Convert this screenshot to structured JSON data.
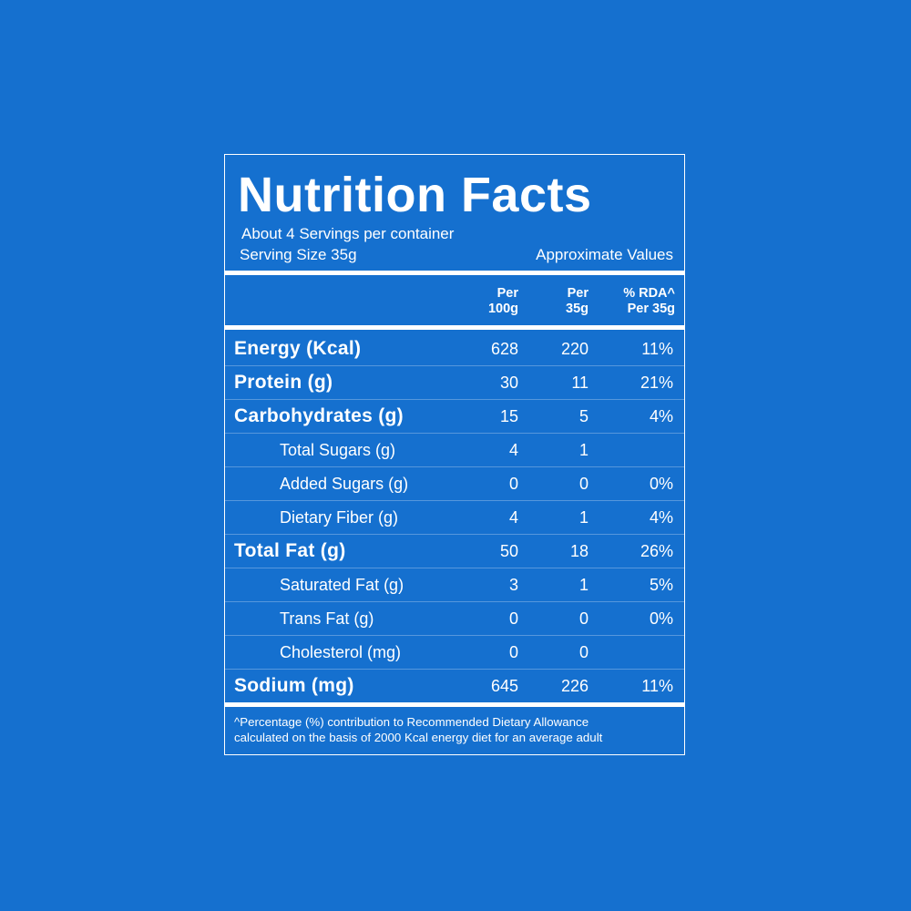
{
  "colors": {
    "background": "#1570cf",
    "text": "#ffffff"
  },
  "label": {
    "title": "Nutrition Facts",
    "servings_per_container": "About 4 Servings per container",
    "serving_size": "Serving Size 35g",
    "approximate": "Approximate Values",
    "columns": [
      {
        "line1": "Per",
        "line2": "100g"
      },
      {
        "line1": "Per",
        "line2": "35g"
      },
      {
        "line1": "% RDA^",
        "line2": "Per 35g"
      }
    ],
    "rows": [
      {
        "name": "Energy (Kcal)",
        "level": "main",
        "per100": "628",
        "per35": "220",
        "rda": "11%"
      },
      {
        "name": "Protein (g)",
        "level": "main",
        "per100": "30",
        "per35": "11",
        "rda": "21%"
      },
      {
        "name": "Carbohydrates (g)",
        "level": "main",
        "per100": "15",
        "per35": "5",
        "rda": "4%"
      },
      {
        "name": "Total Sugars (g)",
        "level": "sub",
        "per100": "4",
        "per35": "1",
        "rda": ""
      },
      {
        "name": "Added Sugars (g)",
        "level": "sub",
        "per100": "0",
        "per35": "0",
        "rda": "0%"
      },
      {
        "name": "Dietary Fiber (g)",
        "level": "sub",
        "per100": "4",
        "per35": "1",
        "rda": "4%"
      },
      {
        "name": "Total Fat (g)",
        "level": "main",
        "per100": "50",
        "per35": "18",
        "rda": "26%"
      },
      {
        "name": "Saturated Fat (g)",
        "level": "sub",
        "per100": "3",
        "per35": "1",
        "rda": "5%"
      },
      {
        "name": "Trans Fat (g)",
        "level": "sub",
        "per100": "0",
        "per35": "0",
        "rda": "0%"
      },
      {
        "name": "Cholesterol (mg)",
        "level": "sub",
        "per100": "0",
        "per35": "0",
        "rda": ""
      },
      {
        "name": "Sodium (mg)",
        "level": "main",
        "per100": "645",
        "per35": "226",
        "rda": "11%"
      }
    ],
    "footnote_line1": "^Percentage (%) contribution to Recommended Dietary Allowance",
    "footnote_line2": "calculated on the basis of 2000 Kcal energy diet for an average adult"
  }
}
